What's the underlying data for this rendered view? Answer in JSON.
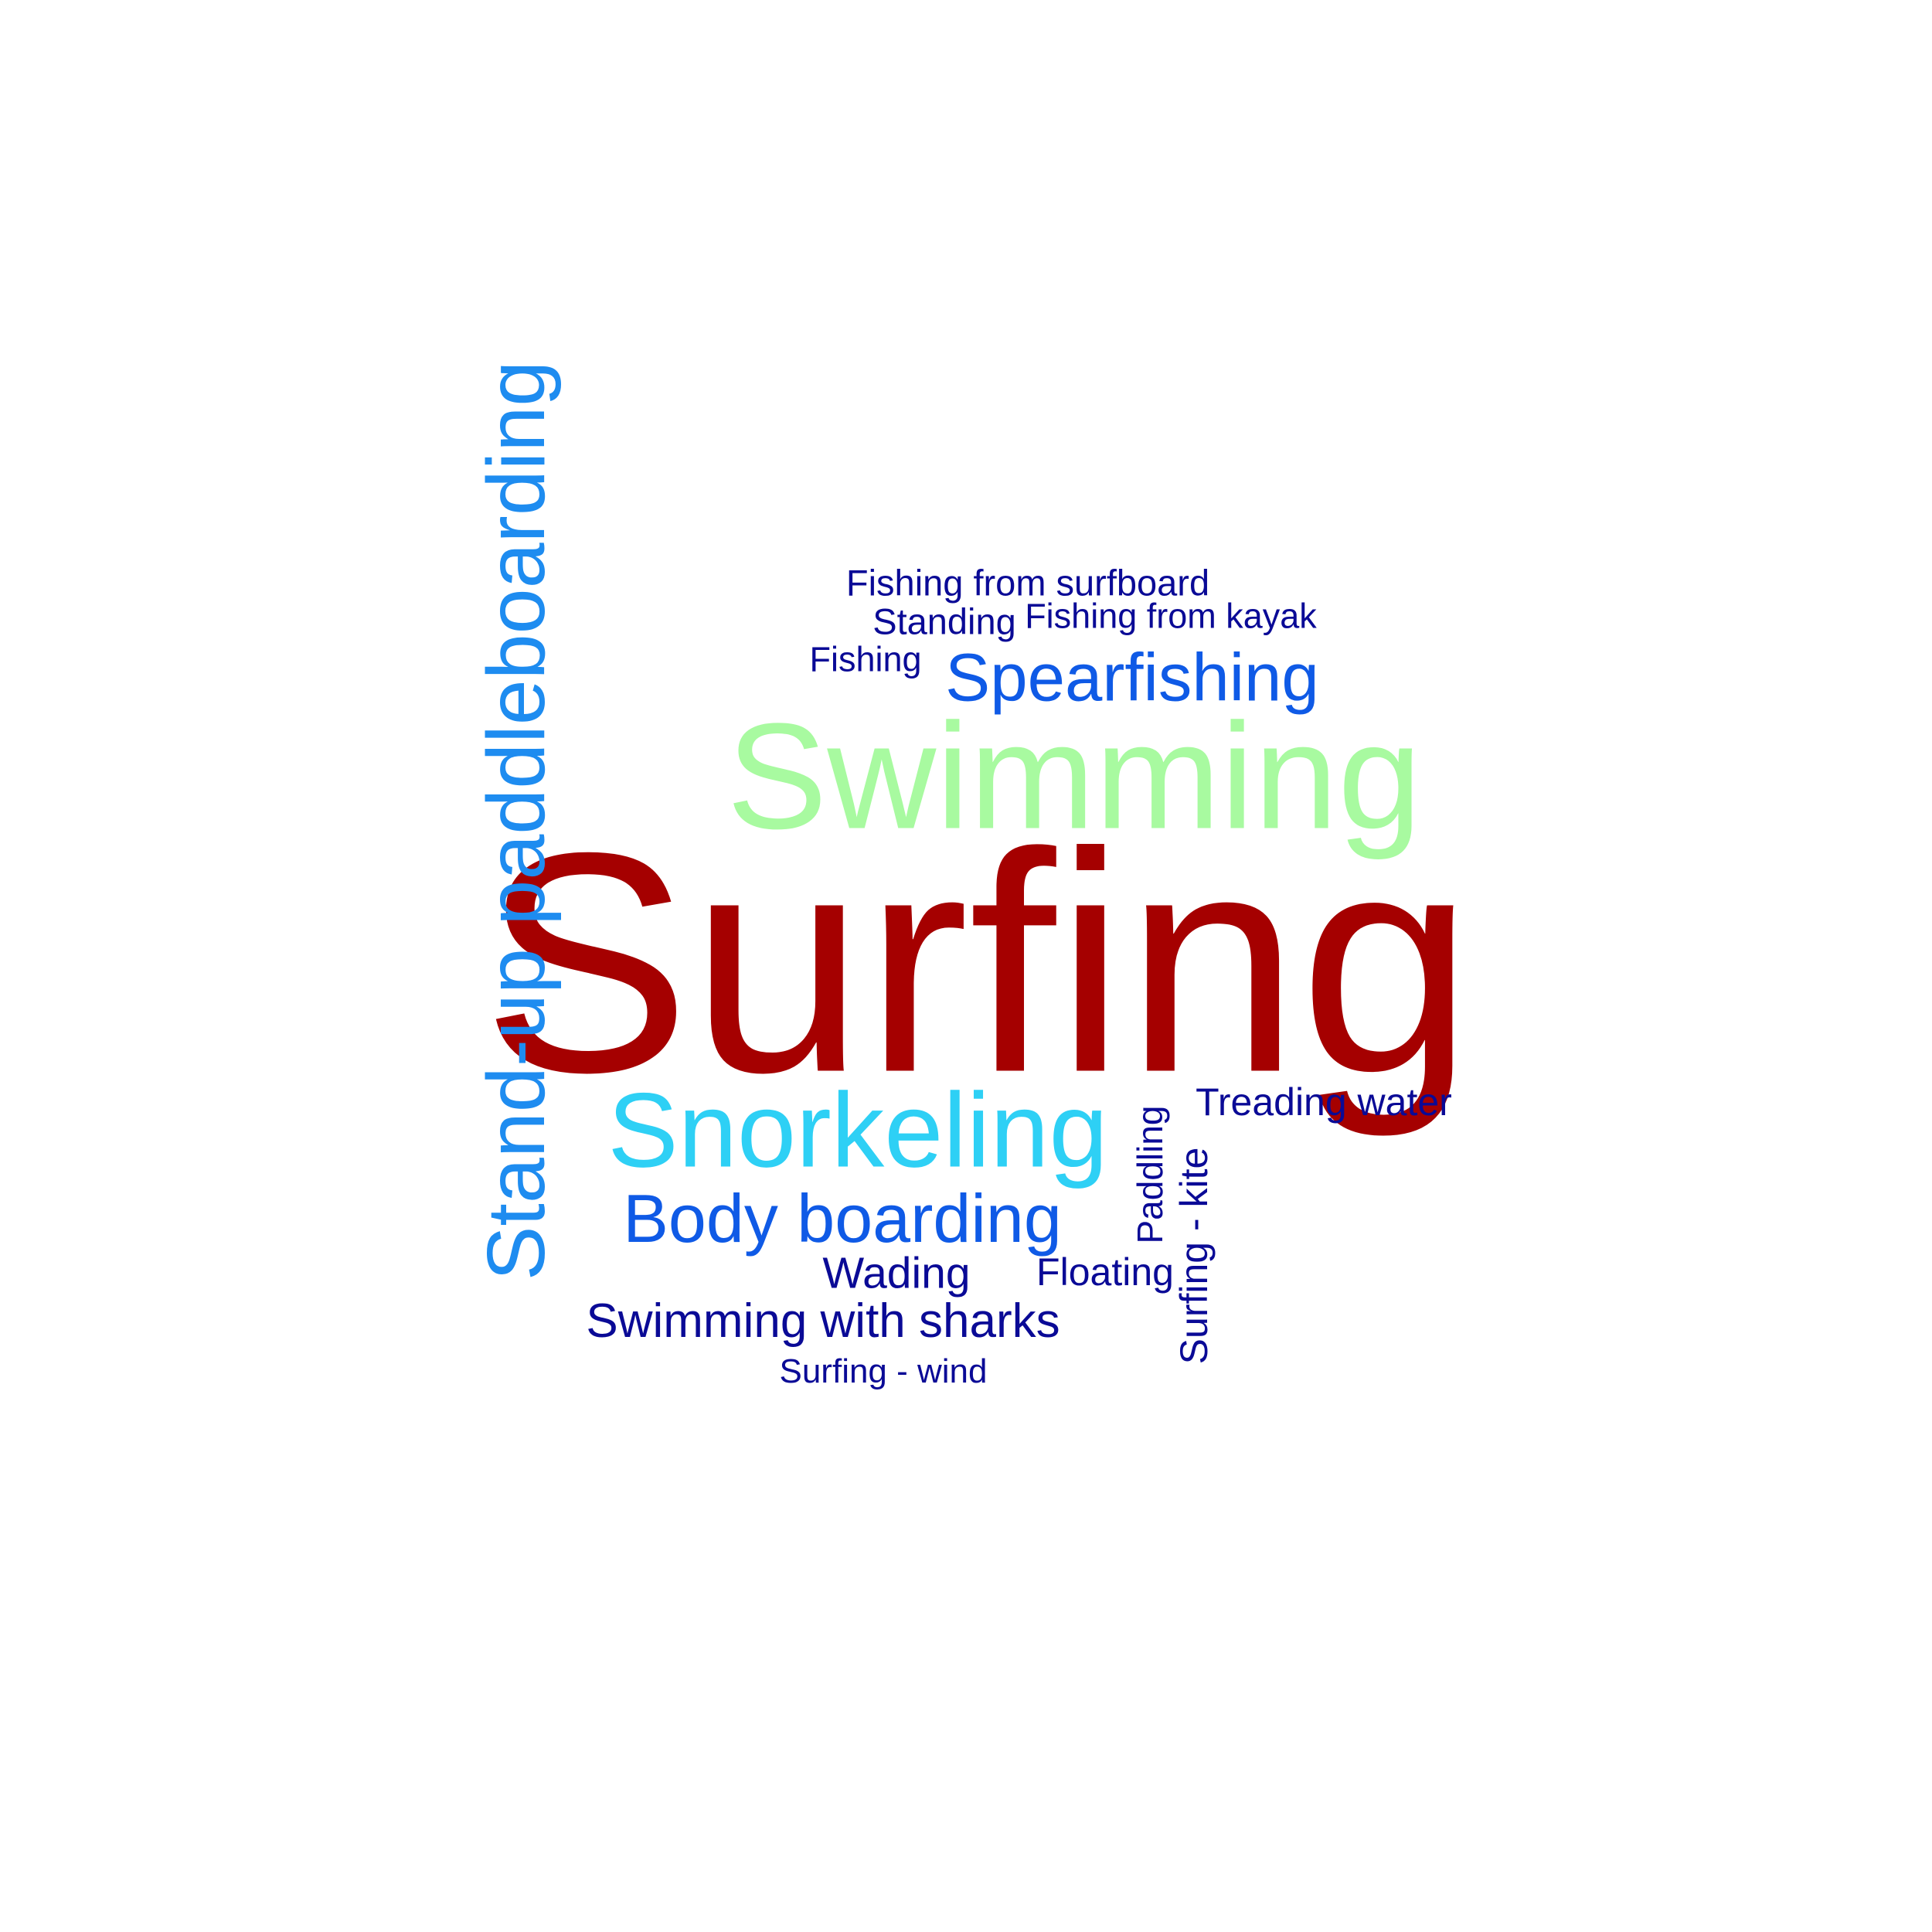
{
  "words": {
    "surfing": {
      "text": "Surfing",
      "color": "#A50000"
    },
    "swimming": {
      "text": "Swimming",
      "color": "#A8FAA0"
    },
    "stand_up_paddleboarding": {
      "text": "Stand-up paddleboarding",
      "color": "#1E8CF0"
    },
    "snorkeling": {
      "text": "Snorkeling",
      "color": "#2ED0F5"
    },
    "spearfishing": {
      "text": "Spearfishing",
      "color": "#0F5AE6"
    },
    "body_boarding": {
      "text": "Body boarding",
      "color": "#0F5AE6"
    },
    "fishing_from_surfboard": {
      "text": "Fishing from surfboard",
      "color": "#0A0A96"
    },
    "standing": {
      "text": "Standing",
      "color": "#0A0A96"
    },
    "fishing_from_kayak": {
      "text": "Fishing from kayak",
      "color": "#0A0A96"
    },
    "fishing": {
      "text": "Fishing",
      "color": "#0A0A96"
    },
    "treading_water": {
      "text": "Treading water",
      "color": "#0A0A96"
    },
    "paddling": {
      "text": "Paddling",
      "color": "#0A0A96"
    },
    "surfing_kite": {
      "text": "Surfing - kite",
      "color": "#0A0A96"
    },
    "wading": {
      "text": "Wading",
      "color": "#0A0A96"
    },
    "floating": {
      "text": "Floating",
      "color": "#0A0A96"
    },
    "swimming_with_sharks": {
      "text": "Swimming with sharks",
      "color": "#0A0A96"
    },
    "surfing_wind": {
      "text": "Surfing - wind",
      "color": "#0A0A96"
    }
  }
}
